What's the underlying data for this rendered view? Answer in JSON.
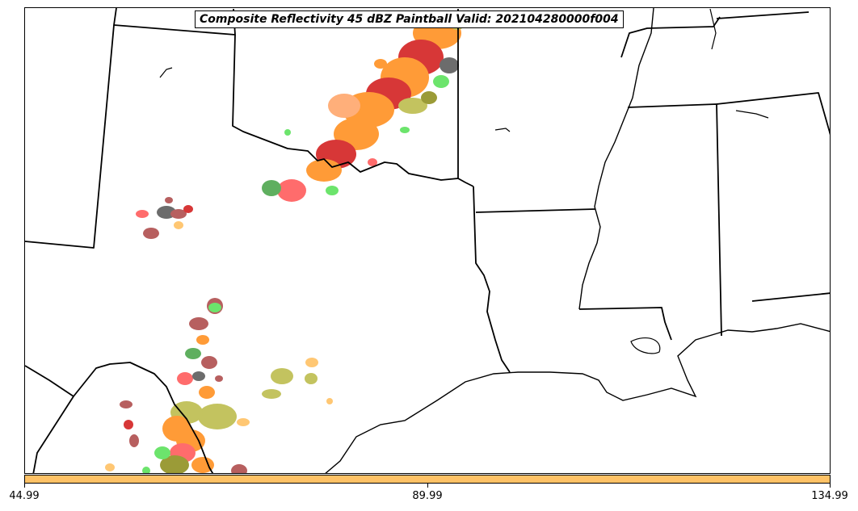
{
  "title": "Composite Reflectivity 45 dBZ Paintball Valid: 202104280000f004",
  "colorbar": {
    "color": "#ffc266",
    "ticks": [
      "44.99",
      "89.99",
      "134.99"
    ]
  },
  "paintball_colors": [
    "#cc0000",
    "#ff8000",
    "#ff9955",
    "#ff4444",
    "#b3b333",
    "#339933",
    "#44dd44",
    "#a33333",
    "#444444",
    "#ffb84d",
    "#808000"
  ],
  "map_features": [
    "state-borders",
    "coastline",
    "mississippi-river"
  ]
}
